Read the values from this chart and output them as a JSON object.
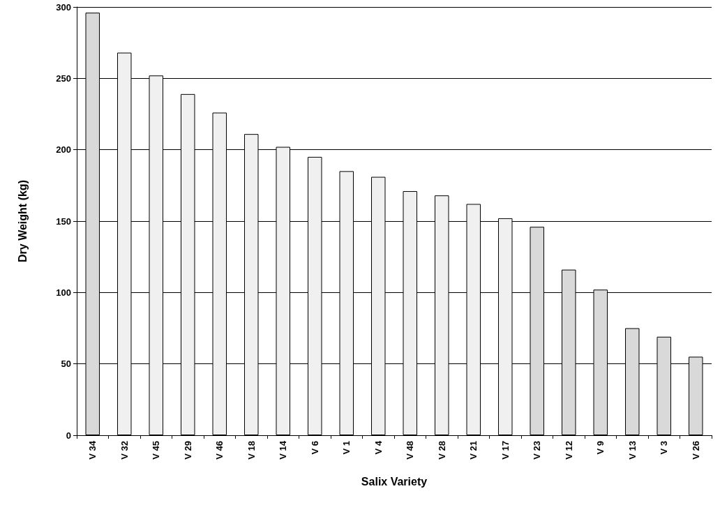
{
  "chart_data": {
    "type": "bar",
    "xlabel": "Salix Variety",
    "ylabel": "Dry Weight (kg)",
    "categories": [
      "V 34",
      "V 32",
      "V 45",
      "V 29",
      "V 46",
      "V 18",
      "V 14",
      "V 6",
      "V 1",
      "V 4",
      "V 48",
      "V 28",
      "V 21",
      "V 17",
      "V 23",
      "V 12",
      "V 9",
      "V 13",
      "V 3",
      "V 26"
    ],
    "values": [
      296,
      268,
      252,
      239,
      226,
      211,
      202,
      195,
      185,
      181,
      171,
      168,
      162,
      152,
      146,
      116,
      102,
      75,
      69,
      55
    ],
    "colors": [
      "#d9d9d9",
      "#f0f0f0",
      "#f0f0f0",
      "#f0f0f0",
      "#f0f0f0",
      "#f0f0f0",
      "#f0f0f0",
      "#f0f0f0",
      "#f0f0f0",
      "#f0f0f0",
      "#f0f0f0",
      "#f0f0f0",
      "#f0f0f0",
      "#f0f0f0",
      "#d9d9d9",
      "#d9d9d9",
      "#d9d9d9",
      "#d9d9d9",
      "#d9d9d9",
      "#d9d9d9"
    ],
    "ylim": [
      0,
      300
    ],
    "yticks": [
      0,
      50,
      100,
      150,
      200,
      250,
      300
    ],
    "grid": "y"
  }
}
